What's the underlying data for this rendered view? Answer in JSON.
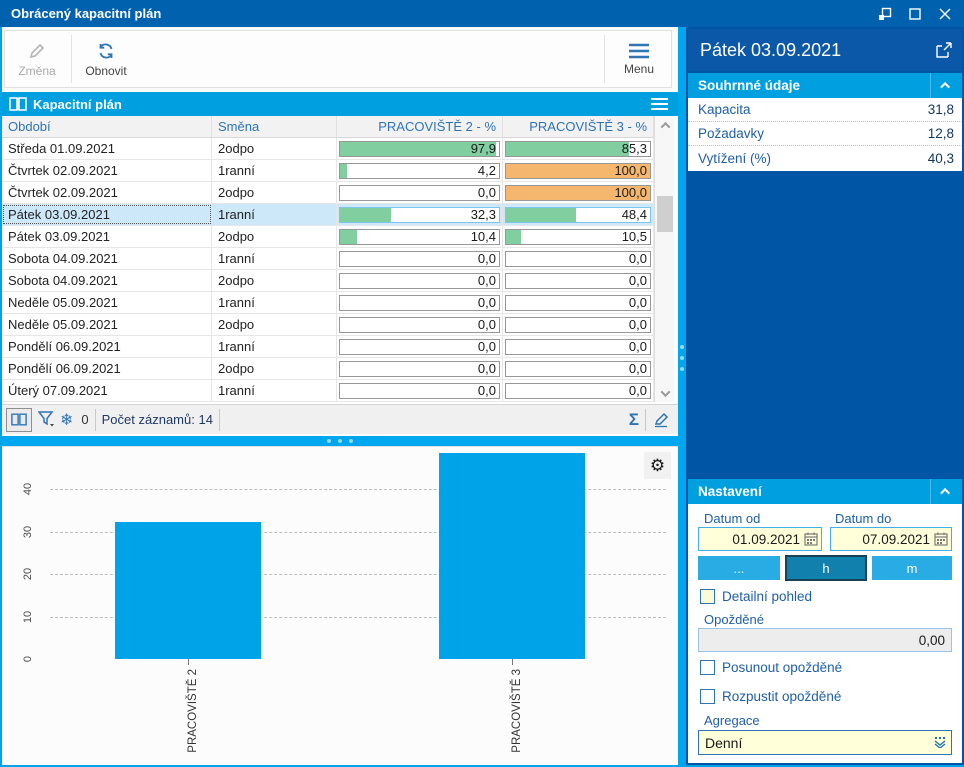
{
  "window": {
    "title": "Obrácený kapacitní plán"
  },
  "toolbar": {
    "change_label": "Změna",
    "refresh_label": "Obnovit",
    "menu_label": "Menu"
  },
  "grid_panel": {
    "title": "Kapacitní plán",
    "columns": [
      "Období",
      "Směna",
      "PRACOVIŠTĚ 2 - %",
      "PRACOVIŠTĚ 3 - %"
    ],
    "rows": [
      {
        "period": "Středa 01.09.2021",
        "shift": "2odpo",
        "p2": {
          "text": "97,9",
          "value": 97.9
        },
        "p3": {
          "text": "85,3",
          "value": 85.3
        },
        "selected": false
      },
      {
        "period": "Čtvrtek 02.09.2021",
        "shift": "1ranní",
        "p2": {
          "text": "4,2",
          "value": 4.2
        },
        "p3": {
          "text": "100,0",
          "value": 100
        },
        "selected": false
      },
      {
        "period": "Čtvrtek 02.09.2021",
        "shift": "2odpo",
        "p2": {
          "text": "0,0",
          "value": 0
        },
        "p3": {
          "text": "100,0",
          "value": 100
        },
        "selected": false
      },
      {
        "period": "Pátek 03.09.2021",
        "shift": "1ranní",
        "p2": {
          "text": "32,3",
          "value": 32.3
        },
        "p3": {
          "text": "48,4",
          "value": 48.4
        },
        "selected": true
      },
      {
        "period": "Pátek 03.09.2021",
        "shift": "2odpo",
        "p2": {
          "text": "10,4",
          "value": 10.4
        },
        "p3": {
          "text": "10,5",
          "value": 10.5
        },
        "selected": false
      },
      {
        "period": "Sobota 04.09.2021",
        "shift": "1ranní",
        "p2": {
          "text": "0,0",
          "value": 0
        },
        "p3": {
          "text": "0,0",
          "value": 0
        },
        "selected": false
      },
      {
        "period": "Sobota 04.09.2021",
        "shift": "2odpo",
        "p2": {
          "text": "0,0",
          "value": 0
        },
        "p3": {
          "text": "0,0",
          "value": 0
        },
        "selected": false
      },
      {
        "period": "Neděle 05.09.2021",
        "shift": "1ranní",
        "p2": {
          "text": "0,0",
          "value": 0
        },
        "p3": {
          "text": "0,0",
          "value": 0
        },
        "selected": false
      },
      {
        "period": "Neděle 05.09.2021",
        "shift": "2odpo",
        "p2": {
          "text": "0,0",
          "value": 0
        },
        "p3": {
          "text": "0,0",
          "value": 0
        },
        "selected": false
      },
      {
        "period": "Pondělí 06.09.2021",
        "shift": "1ranní",
        "p2": {
          "text": "0,0",
          "value": 0
        },
        "p3": {
          "text": "0,0",
          "value": 0
        },
        "selected": false
      },
      {
        "period": "Pondělí 06.09.2021",
        "shift": "2odpo",
        "p2": {
          "text": "0,0",
          "value": 0
        },
        "p3": {
          "text": "0,0",
          "value": 0
        },
        "selected": false
      },
      {
        "period": "Úterý 07.09.2021",
        "shift": "1ranní",
        "p2": {
          "text": "0,0",
          "value": 0
        },
        "p3": {
          "text": "0,0",
          "value": 0
        },
        "selected": false
      }
    ],
    "status": {
      "frozen_count": "0",
      "record_count": "Počet záznamů: 14"
    }
  },
  "chart_data": {
    "type": "bar",
    "categories": [
      "PRACOVIŠTĚ 2",
      "PRACOVIŠTĚ 3"
    ],
    "values": [
      32.3,
      48.4
    ],
    "title": "",
    "xlabel": "",
    "ylabel": "",
    "ylim": [
      0,
      48.4
    ],
    "yticks": [
      0,
      10,
      20,
      30,
      40
    ],
    "grid": "horizontal-dashed",
    "legend": "none",
    "bar_color": "#00A2E8"
  },
  "details": {
    "header": "Pátek 03.09.2021",
    "summary": {
      "title": "Souhrnné údaje",
      "rows": [
        {
          "label": "Kapacita",
          "value": "31,8"
        },
        {
          "label": "Požadavky",
          "value": "12,8"
        },
        {
          "label": "Vytížení (%)",
          "value": "40,3"
        }
      ]
    },
    "settings": {
      "title": "Nastavení",
      "date_from_label": "Datum od",
      "date_from": "01.09.2021",
      "date_to_label": "Datum do",
      "date_to": "07.09.2021",
      "range_buttons": [
        "...",
        "h",
        "m"
      ],
      "active_range": "h",
      "detail_checkbox": "Detailní pohled",
      "delayed_label": "Opožděné",
      "delayed_value": "0,00",
      "shift_checkbox": "Posunout opožděné",
      "dissolve_checkbox": "Rozpustit opožděné",
      "aggregation_label": "Agregace",
      "aggregation_value": "Denní"
    }
  },
  "icons": {
    "gear": "⚙",
    "snowflake": "❄",
    "sigma": "Σ"
  },
  "colors": {
    "titlebar": "#0061AE",
    "accent_cyan": "#009FE0",
    "splitter": "#00A7EE",
    "panel_navy": "#0056A4",
    "bar_blue": "#00A2E8",
    "progress_green": "#81CFA1",
    "progress_orange": "#F5B76E",
    "field_yellow": "#FFFFD9",
    "selected_row": "#CDE8F8"
  }
}
